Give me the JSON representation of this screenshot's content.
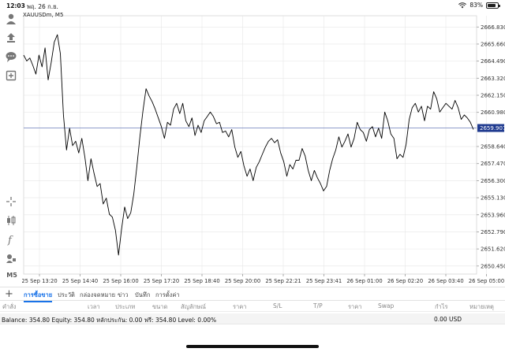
{
  "status_bar": {
    "time": "12:03",
    "date": "พฤ. 26 ก.ย.",
    "battery": "83%",
    "battery_level": 0.83
  },
  "chart": {
    "symbol": "XAUUSDm, M5",
    "current_price": "2659.907",
    "price_labels": [
      "2666.830",
      "2665.660",
      "2664.490",
      "2663.320",
      "2662.150",
      "2660.980",
      "2658.640",
      "2657.470",
      "2656.300",
      "2655.130",
      "2653.960",
      "2652.790",
      "2651.620",
      "2650.450"
    ],
    "time_labels": [
      "25 Sep 13:20",
      "25 Sep 14:40",
      "25 Sep 16:00",
      "25 Sep 17:20",
      "25 Sep 18:40",
      "25 Sep 20:00",
      "25 Sep 22:21",
      "25 Sep 23:41",
      "26 Sep 01:00",
      "26 Sep 02:20",
      "26 Sep 03:40",
      "26 Sep 05:00"
    ],
    "colors": {
      "line": "#000000",
      "price_line": "#7f8fc4",
      "price_tag": "#1f3a8f",
      "grid": "#e6e6e6"
    }
  },
  "chart_data": {
    "type": "line",
    "title": "XAUUSDm, M5",
    "xlabel": "",
    "ylabel": "",
    "ylim": [
      2649.9,
      2667.6
    ],
    "current_price": 2659.907,
    "x_ticks": [
      "25 Sep 13:20",
      "25 Sep 14:40",
      "25 Sep 16:00",
      "25 Sep 17:20",
      "25 Sep 18:40",
      "25 Sep 20:00",
      "25 Sep 22:21",
      "25 Sep 23:41",
      "26 Sep 01:00",
      "26 Sep 02:20",
      "26 Sep 03:40",
      "26 Sep 05:00"
    ],
    "y_ticks": [
      2666.83,
      2665.66,
      2664.49,
      2663.32,
      2662.15,
      2660.98,
      2658.64,
      2657.47,
      2656.3,
      2655.13,
      2653.96,
      2652.79,
      2651.62,
      2650.45
    ],
    "grid": true,
    "series": [
      {
        "values": [
          2664.9,
          2664.5,
          2664.7,
          2664.2,
          2663.6,
          2664.9,
          2664.1,
          2665.4,
          2663.2,
          2664.4,
          2665.8,
          2666.3,
          2665.0,
          2660.8,
          2658.4,
          2659.9,
          2658.7,
          2659.0,
          2658.2,
          2659.2,
          2657.9,
          2656.3,
          2657.8,
          2656.8,
          2655.9,
          2656.1,
          2654.7,
          2655.1,
          2654.0,
          2653.8,
          2652.9,
          2651.2,
          2653.0,
          2654.5,
          2653.7,
          2654.1,
          2655.4,
          2657.3,
          2659.3,
          2661.1,
          2662.6,
          2662.1,
          2661.7,
          2661.2,
          2660.6,
          2660.0,
          2659.2,
          2660.3,
          2660.1,
          2661.2,
          2661.6,
          2660.9,
          2661.6,
          2660.4,
          2660.0,
          2660.6,
          2659.4,
          2660.1,
          2659.6,
          2660.4,
          2660.7,
          2661.0,
          2660.7,
          2660.2,
          2660.3,
          2659.6,
          2659.7,
          2659.3,
          2659.8,
          2658.6,
          2657.9,
          2658.3,
          2657.3,
          2656.6,
          2657.1,
          2656.3,
          2657.2,
          2657.6,
          2658.1,
          2658.6,
          2659.0,
          2659.2,
          2658.9,
          2659.1,
          2658.2,
          2657.6,
          2656.6,
          2657.4,
          2657.1,
          2657.7,
          2657.7,
          2658.5,
          2658.0,
          2657.0,
          2656.3,
          2657.0,
          2656.5,
          2656.1,
          2655.6,
          2655.9,
          2657.0,
          2657.8,
          2658.4,
          2659.3,
          2658.6,
          2659.0,
          2659.5,
          2658.6,
          2659.2,
          2660.3,
          2659.8,
          2659.6,
          2659.0,
          2659.8,
          2660.0,
          2659.3,
          2659.9,
          2659.2,
          2661.0,
          2660.4,
          2659.5,
          2659.2,
          2657.8,
          2658.1,
          2657.9,
          2658.8,
          2660.5,
          2661.3,
          2661.6,
          2661.0,
          2661.4,
          2660.4,
          2661.4,
          2661.2,
          2662.4,
          2661.9,
          2661.0,
          2661.3,
          2661.6,
          2661.4,
          2661.2,
          2661.8,
          2661.3,
          2660.5,
          2660.8,
          2660.6,
          2660.3,
          2659.8
        ]
      }
    ]
  },
  "tabs": {
    "items": [
      "การซื้อขาย",
      "ประวัติ",
      "กล่องจดหมาย",
      "ข่าว",
      "บันทึก",
      "การตั้งค่า"
    ],
    "active_index": 0
  },
  "table": {
    "columns": [
      "คำสั่ง",
      "เวลา",
      "ประเภท",
      "ขนาด",
      "สัญลักษณ์",
      "ราคา",
      "S/L",
      "T/P",
      "ราคา",
      "Swap",
      "กำไร",
      "หมายเหตุ"
    ]
  },
  "account": {
    "summary": "Balance: 354.80 Equity: 354.80 หลักประกัน: 0.00 ฟรี: 354.80 Level: 0.00%",
    "profit": "0.00",
    "currency": "USD"
  },
  "toolbar": {
    "timeframe": "M5",
    "icons": [
      "user-icon",
      "trade-up-icon",
      "chat-icon",
      "add-box-icon",
      "crosshair-icon",
      "candles-icon",
      "function-icon",
      "objects-icon"
    ]
  }
}
